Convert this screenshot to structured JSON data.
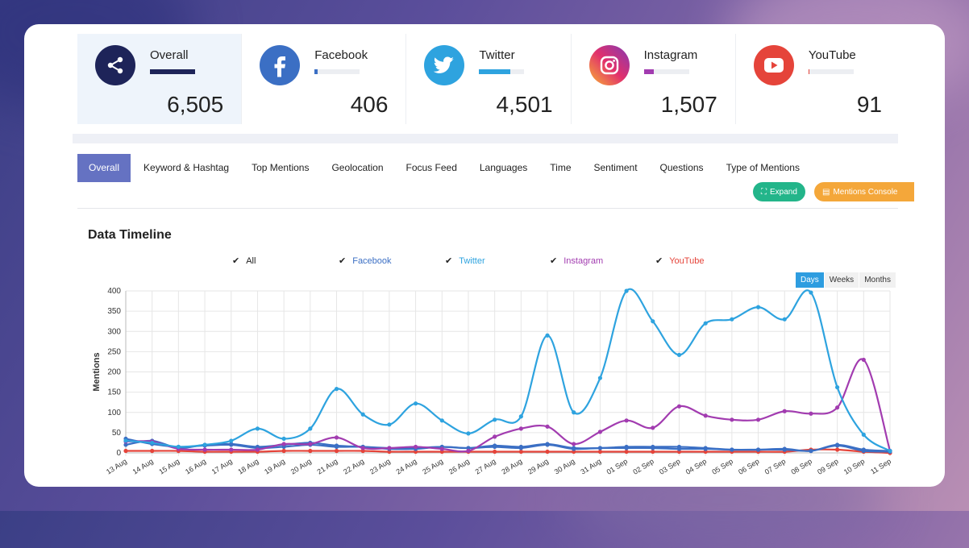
{
  "stats": [
    {
      "name": "Overall",
      "count": "6,505",
      "color": "#1e2459",
      "icon": "share-icon",
      "fill": 1.0
    },
    {
      "name": "Facebook",
      "count": "406",
      "color": "#3b6fc4",
      "icon": "facebook-icon",
      "fill": 0.06
    },
    {
      "name": "Twitter",
      "count": "4,501",
      "color": "#2ea3df",
      "icon": "twitter-icon",
      "fill": 0.69
    },
    {
      "name": "Instagram",
      "count": "1,507",
      "color": "#a23cb0",
      "icon": "instagram-icon",
      "fill": 0.23
    },
    {
      "name": "YouTube",
      "count": "91",
      "color": "#e5443a",
      "icon": "youtube-icon",
      "fill": 0.02
    }
  ],
  "tabs": [
    "Overall",
    "Keyword & Hashtag",
    "Top Mentions",
    "Geolocation",
    "Focus Feed",
    "Languages",
    "Time",
    "Sentiment",
    "Questions",
    "Type of Mentions"
  ],
  "buttons": {
    "expand": "Expand",
    "console": "Mentions Console"
  },
  "chart_title": "Data Timeline",
  "range_buttons": [
    "Days",
    "Weeks",
    "Months"
  ],
  "chart_data": {
    "type": "line",
    "ylabel": "Mentions",
    "ylim": [
      0,
      400
    ],
    "yticks": [
      0,
      50,
      100,
      150,
      200,
      250,
      300,
      350,
      400
    ],
    "grid": true,
    "legend_position": "top",
    "categories": [
      "13 Aug",
      "14 Aug",
      "15 Aug",
      "16 Aug",
      "17 Aug",
      "18 Aug",
      "19 Aug",
      "20 Aug",
      "21 Aug",
      "22 Aug",
      "23 Aug",
      "24 Aug",
      "25 Aug",
      "26 Aug",
      "27 Aug",
      "28 Aug",
      "29 Aug",
      "30 Aug",
      "31 Aug",
      "01 Sep",
      "02 Sep",
      "03 Sep",
      "04 Sep",
      "05 Sep",
      "06 Sep",
      "07 Sep",
      "08 Sep",
      "09 Sep",
      "10 Sep",
      "11 Sep"
    ],
    "series": [
      {
        "name": "All",
        "color": "#3b6fc4",
        "values": [
          20,
          30,
          12,
          20,
          22,
          15,
          20,
          25,
          18,
          15,
          12,
          12,
          15,
          12,
          18,
          15,
          22,
          12,
          12,
          15,
          15,
          15,
          12,
          8,
          8,
          10,
          5,
          20,
          8,
          5
        ]
      },
      {
        "name": "Facebook",
        "color": "#3b6fc4",
        "values": [
          35,
          22,
          15,
          18,
          20,
          12,
          15,
          20,
          15,
          15,
          10,
          10,
          15,
          12,
          15,
          12,
          20,
          10,
          12,
          12,
          12,
          10,
          10,
          8,
          8,
          8,
          5,
          18,
          5,
          3
        ]
      },
      {
        "name": "Twitter",
        "color": "#2ea3df",
        "values": [
          30,
          25,
          15,
          20,
          30,
          60,
          35,
          60,
          158,
          95,
          70,
          122,
          80,
          48,
          82,
          90,
          290,
          100,
          185,
          400,
          325,
          242,
          320,
          330,
          360,
          330,
          396,
          162,
          45,
          5
        ]
      },
      {
        "name": "Instagram",
        "color": "#a23cb0",
        "values": [
          28,
          28,
          10,
          8,
          8,
          8,
          22,
          22,
          38,
          12,
          12,
          15,
          10,
          5,
          40,
          60,
          65,
          22,
          52,
          80,
          62,
          115,
          92,
          82,
          82,
          103,
          97,
          112,
          230,
          5
        ]
      },
      {
        "name": "YouTube",
        "color": "#e5443a",
        "values": [
          5,
          5,
          5,
          3,
          3,
          3,
          5,
          5,
          5,
          5,
          3,
          3,
          3,
          3,
          3,
          3,
          3,
          3,
          3,
          3,
          3,
          3,
          3,
          3,
          3,
          3,
          8,
          8,
          3,
          0
        ]
      }
    ]
  }
}
